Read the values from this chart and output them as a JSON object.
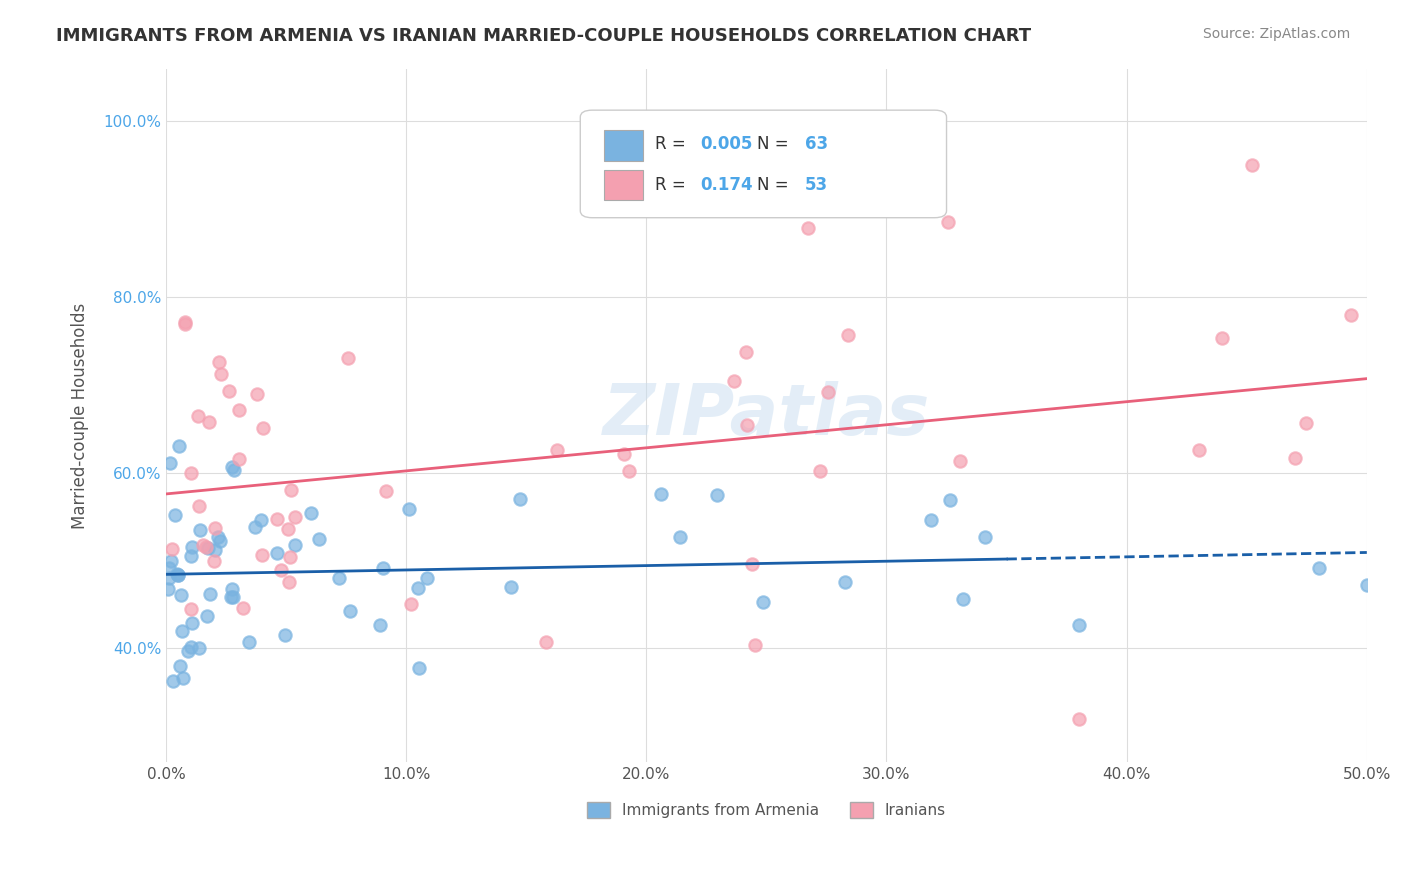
{
  "title": "IMMIGRANTS FROM ARMENIA VS IRANIAN MARRIED-COUPLE HOUSEHOLDS CORRELATION CHART",
  "source": "Source: ZipAtlas.com",
  "ylabel": "Married-couple Households",
  "xlim": [
    0.0,
    0.5
  ],
  "x_ticks": [
    0.0,
    0.1,
    0.2,
    0.3,
    0.4,
    0.5
  ],
  "x_tick_labels": [
    "0.0%",
    "10.0%",
    "20.0%",
    "30.0%",
    "40.0%",
    "50.0%"
  ],
  "y_ticks": [
    0.4,
    0.6,
    0.8,
    1.0
  ],
  "y_tick_labels": [
    "40.0%",
    "60.0%",
    "80.0%",
    "100.0%"
  ],
  "legend_labels": [
    "Immigrants from Armenia",
    "Iranians"
  ],
  "R_armenia": 0.005,
  "N_armenia": 63,
  "R_iranians": 0.174,
  "N_iranians": 53,
  "color_armenia": "#7ab3e0",
  "color_iranians": "#f4a0b0",
  "line_color_armenia": "#1a5fa8",
  "line_color_iranians": "#e8607a",
  "watermark": "ZIPatlas",
  "background_color": "#ffffff",
  "plot_bg_color": "#ffffff",
  "grid_color": "#dddddd",
  "scatter_size": 80,
  "scatter_alpha": 0.7
}
